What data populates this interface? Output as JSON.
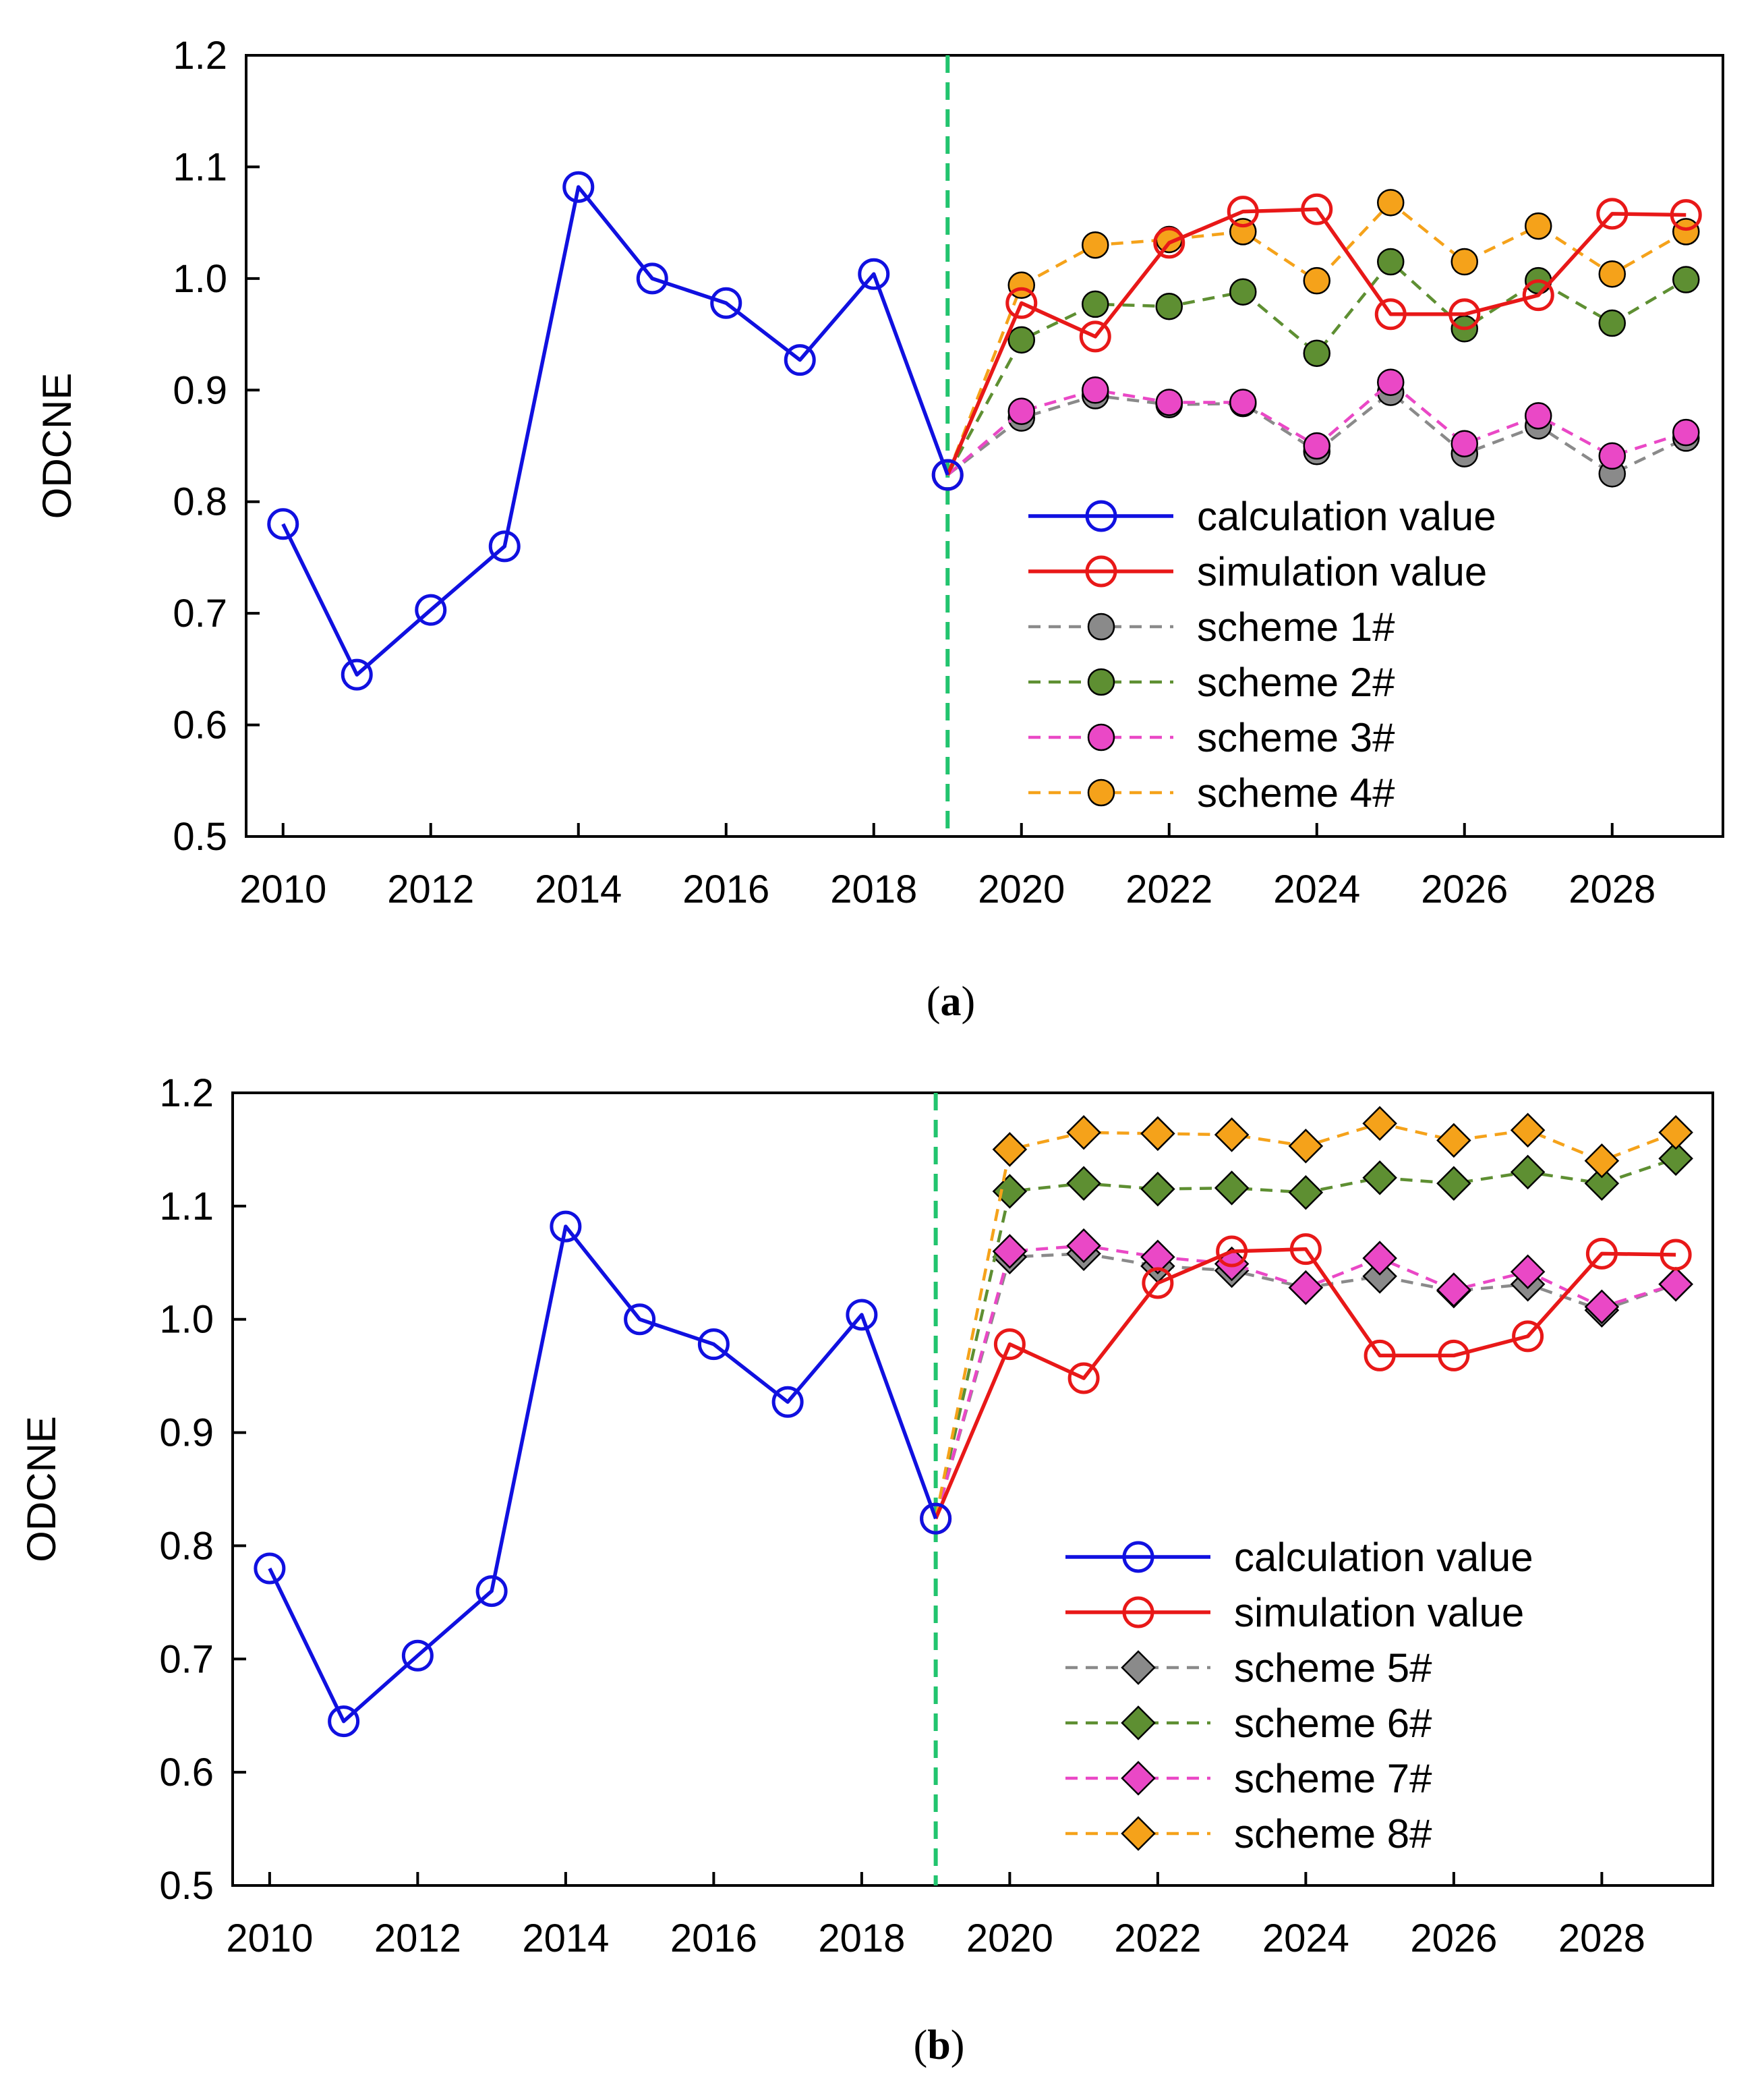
{
  "chart_data": [
    {
      "type": "line",
      "panel_label": "(a)",
      "panel_letter": "a",
      "ylabel": "ODCNE",
      "xlabel": "",
      "ylim": [
        0.5,
        1.2
      ],
      "xlim": [
        2009.5,
        2029.5
      ],
      "yticks": [
        0.5,
        0.6,
        0.7,
        0.8,
        0.9,
        1.0,
        1.1,
        1.2
      ],
      "ytick_labels": [
        "0.5",
        "0.6",
        "0.7",
        "0.8",
        "0.9",
        "1.0",
        "1.1",
        "1.2"
      ],
      "xticks": [
        2010,
        2012,
        2014,
        2016,
        2018,
        2020,
        2022,
        2024,
        2026,
        2028
      ],
      "xtick_labels": [
        "2010",
        "2012",
        "2014",
        "2016",
        "2018",
        "2020",
        "2022",
        "2024",
        "2026",
        "2028"
      ],
      "vline_x": 2019,
      "legend_position": "lower-right",
      "series": [
        {
          "name": "calculation value",
          "marker": "open-circle",
          "dash": false,
          "color": "#1010e0",
          "x": [
            2010,
            2011,
            2012,
            2013,
            2014,
            2015,
            2016,
            2017,
            2018,
            2019
          ],
          "values": [
            0.78,
            0.645,
            0.703,
            0.76,
            1.082,
            1.0,
            0.978,
            0.927,
            1.004,
            0.824
          ]
        },
        {
          "name": "simulation value",
          "marker": "open-circle",
          "dash": false,
          "color": "#e81818",
          "x": [
            2019,
            2020,
            2021,
            2022,
            2023,
            2024,
            2025,
            2026,
            2027,
            2028,
            2029
          ],
          "values": [
            0.824,
            0.978,
            0.948,
            1.032,
            1.06,
            1.062,
            0.968,
            0.968,
            0.985,
            1.058,
            1.057
          ]
        },
        {
          "name": "scheme 1#",
          "marker": "filled-circle",
          "dash": true,
          "color": "#8a8a8a",
          "x": [
            2019,
            2020,
            2021,
            2022,
            2023,
            2024,
            2025,
            2026,
            2027,
            2028,
            2029
          ],
          "values": [
            0.824,
            0.875,
            0.895,
            0.887,
            0.888,
            0.845,
            0.898,
            0.843,
            0.868,
            0.825,
            0.857
          ]
        },
        {
          "name": "scheme 2#",
          "marker": "filled-circle",
          "dash": true,
          "color": "#5e8f32",
          "x": [
            2019,
            2020,
            2021,
            2022,
            2023,
            2024,
            2025,
            2026,
            2027,
            2028,
            2029
          ],
          "values": [
            0.824,
            0.945,
            0.977,
            0.975,
            0.988,
            0.933,
            1.015,
            0.955,
            0.998,
            0.96,
            0.999
          ]
        },
        {
          "name": "scheme 3#",
          "marker": "filled-circle",
          "dash": true,
          "color": "#ea48c6",
          "x": [
            2019,
            2020,
            2021,
            2022,
            2023,
            2024,
            2025,
            2026,
            2027,
            2028,
            2029
          ],
          "values": [
            0.824,
            0.881,
            0.9,
            0.889,
            0.889,
            0.85,
            0.907,
            0.852,
            0.877,
            0.841,
            0.862
          ]
        },
        {
          "name": "scheme 4#",
          "marker": "filled-circle",
          "dash": true,
          "color": "#f5a21a",
          "x": [
            2019,
            2020,
            2021,
            2022,
            2023,
            2024,
            2025,
            2026,
            2027,
            2028,
            2029
          ],
          "values": [
            0.824,
            0.994,
            1.03,
            1.035,
            1.042,
            0.998,
            1.068,
            1.015,
            1.047,
            1.004,
            1.042
          ]
        }
      ]
    },
    {
      "type": "line",
      "panel_label": "(b)",
      "panel_letter": "b",
      "ylabel": "ODCNE",
      "xlabel": "",
      "ylim": [
        0.5,
        1.2
      ],
      "xlim": [
        2009.5,
        2029.5
      ],
      "yticks": [
        0.5,
        0.6,
        0.7,
        0.8,
        0.9,
        1.0,
        1.1,
        1.2
      ],
      "ytick_labels": [
        "0.5",
        "0.6",
        "0.7",
        "0.8",
        "0.9",
        "1.0",
        "1.1",
        "1.2"
      ],
      "xticks": [
        2010,
        2012,
        2014,
        2016,
        2018,
        2020,
        2022,
        2024,
        2026,
        2028
      ],
      "xtick_labels": [
        "2010",
        "2012",
        "2014",
        "2016",
        "2018",
        "2020",
        "2022",
        "2024",
        "2026",
        "2028"
      ],
      "vline_x": 2019,
      "legend_position": "lower-right",
      "series": [
        {
          "name": "calculation value",
          "marker": "open-circle",
          "dash": false,
          "color": "#1010e0",
          "x": [
            2010,
            2011,
            2012,
            2013,
            2014,
            2015,
            2016,
            2017,
            2018,
            2019
          ],
          "values": [
            0.78,
            0.645,
            0.703,
            0.76,
            1.082,
            1.0,
            0.978,
            0.927,
            1.004,
            0.824
          ]
        },
        {
          "name": "simulation value",
          "marker": "open-circle",
          "dash": false,
          "color": "#e81818",
          "x": [
            2019,
            2020,
            2021,
            2022,
            2023,
            2024,
            2025,
            2026,
            2027,
            2028,
            2029
          ],
          "values": [
            0.824,
            0.978,
            0.948,
            1.032,
            1.06,
            1.062,
            0.968,
            0.968,
            0.985,
            1.058,
            1.057
          ]
        },
        {
          "name": "scheme 5#",
          "marker": "filled-diamond",
          "dash": true,
          "color": "#8a8a8a",
          "x": [
            2019,
            2020,
            2021,
            2022,
            2023,
            2024,
            2025,
            2026,
            2027,
            2028,
            2029
          ],
          "values": [
            0.824,
            1.055,
            1.058,
            1.047,
            1.043,
            1.028,
            1.038,
            1.025,
            1.031,
            1.008,
            1.031
          ]
        },
        {
          "name": "scheme 6#",
          "marker": "filled-diamond",
          "dash": true,
          "color": "#5e8f32",
          "x": [
            2019,
            2020,
            2021,
            2022,
            2023,
            2024,
            2025,
            2026,
            2027,
            2028,
            2029
          ],
          "values": [
            0.824,
            1.113,
            1.12,
            1.115,
            1.116,
            1.112,
            1.125,
            1.12,
            1.13,
            1.12,
            1.142
          ]
        },
        {
          "name": "scheme 7#",
          "marker": "filled-diamond",
          "dash": true,
          "color": "#ea48c6",
          "x": [
            2019,
            2020,
            2021,
            2022,
            2023,
            2024,
            2025,
            2026,
            2027,
            2028,
            2029
          ],
          "values": [
            0.824,
            1.06,
            1.065,
            1.055,
            1.049,
            1.028,
            1.054,
            1.026,
            1.042,
            1.011,
            1.031
          ]
        },
        {
          "name": "scheme 8#",
          "marker": "filled-diamond",
          "dash": true,
          "color": "#f5a21a",
          "x": [
            2019,
            2020,
            2021,
            2022,
            2023,
            2024,
            2025,
            2026,
            2027,
            2028,
            2029
          ],
          "values": [
            0.824,
            1.15,
            1.165,
            1.164,
            1.163,
            1.153,
            1.173,
            1.158,
            1.167,
            1.14,
            1.165
          ]
        }
      ]
    }
  ],
  "colors": {
    "vline": "#22c46e",
    "axis": "#000000"
  }
}
